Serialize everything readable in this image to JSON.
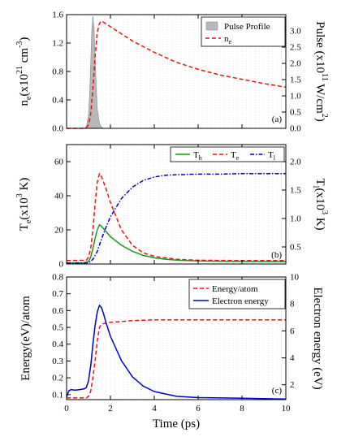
{
  "colors": {
    "pulse_fill": "#b8b8b8",
    "red": "#ee1111",
    "green": "#1a9a1a",
    "blue": "#0000cc",
    "grid": "#dcdcdc"
  },
  "chart_data": [
    {
      "type": "line",
      "panel_label": "(a)",
      "x_range": [
        0,
        10
      ],
      "x_ticks": [
        0,
        2,
        4,
        6,
        8,
        10
      ],
      "ylabel_left": {
        "main": "n",
        "sub": "e",
        "rest": "(x10",
        "sup": "21",
        "tail": " cm",
        "sup2": "-3",
        "close": ")"
      },
      "ylabel_right": {
        "main": "Pulse (x10",
        "sup": "11",
        "rest": " W/cm",
        "sup2": "2",
        "close": ")"
      },
      "ylim_left": [
        0,
        1.6
      ],
      "yticks_left": [
        "0.0",
        "0.4",
        "0.8",
        "1.2",
        "1.6"
      ],
      "ylim_right": [
        0,
        3.5
      ],
      "yticks_right": [
        "0.0",
        "0.5",
        "1.0",
        "1.5",
        "2.0",
        "2.5",
        "3.0"
      ],
      "legend_position": "top-right",
      "series": [
        {
          "name": "Pulse Profile",
          "axis": "right",
          "style": "filled",
          "x": [
            0.8,
            0.9,
            1.0,
            1.05,
            1.1,
            1.15,
            1.2,
            1.25,
            1.3,
            1.35,
            1.4,
            1.5,
            1.6,
            1.7
          ],
          "y": [
            0.0,
            0.05,
            0.4,
            1.0,
            2.0,
            3.0,
            3.45,
            3.1,
            2.2,
            1.3,
            0.6,
            0.15,
            0.03,
            0.0
          ]
        },
        {
          "name": "n",
          "name_sub": "e",
          "axis": "left",
          "style": "dashed",
          "x": [
            0,
            0.7,
            0.9,
            1.0,
            1.1,
            1.2,
            1.3,
            1.4,
            1.5,
            1.6,
            2,
            3,
            4,
            5,
            6,
            7,
            8,
            9,
            10
          ],
          "y": [
            0.0,
            0.0,
            0.01,
            0.05,
            0.2,
            0.55,
            1.0,
            1.35,
            1.48,
            1.51,
            1.43,
            1.23,
            1.07,
            0.93,
            0.83,
            0.75,
            0.69,
            0.63,
            0.58
          ]
        }
      ]
    },
    {
      "type": "line",
      "panel_label": "(b)",
      "x_range": [
        0,
        10
      ],
      "x_ticks": [
        0,
        2,
        4,
        6,
        8,
        10
      ],
      "ylabel_left": {
        "main": "T",
        "sub": "e",
        "rest": "(x10",
        "sup": "3",
        "close": " K)"
      },
      "ylabel_right": {
        "main": "T",
        "sub": "l",
        "rest": "(x10",
        "sup": "3",
        "close": " K)"
      },
      "ylim_left": [
        0,
        70
      ],
      "yticks_left": [
        "0",
        "20",
        "40",
        "60"
      ],
      "ylim_right": [
        0.2,
        2.3
      ],
      "yticks_right": [
        "0.5",
        "1.0",
        "1.5",
        "2.0"
      ],
      "legend_position": "top-right",
      "series": [
        {
          "name": "T",
          "name_sub": "h",
          "axis": "left",
          "style": "solid",
          "x": [
            0,
            0.8,
            1.0,
            1.1,
            1.2,
            1.3,
            1.4,
            1.5,
            1.6,
            1.8,
            2,
            2.5,
            3,
            3.5,
            4,
            4.5,
            5,
            6,
            7,
            8,
            10
          ],
          "y": [
            0.5,
            0.6,
            1.5,
            4,
            9,
            15,
            20,
            23,
            22,
            19,
            16,
            11,
            7.5,
            5,
            3.6,
            2.8,
            2.3,
            1.8,
            1.6,
            1.5,
            1.4
          ]
        },
        {
          "name": "T",
          "name_sub": "e",
          "axis": "left",
          "style": "dashed",
          "x": [
            0,
            0.9,
            1.0,
            1.1,
            1.2,
            1.3,
            1.4,
            1.5,
            1.6,
            1.8,
            2,
            2.5,
            3,
            3.5,
            4,
            5,
            6,
            8,
            10
          ],
          "y": [
            2,
            2.2,
            4,
            9,
            20,
            35,
            48,
            53,
            51,
            44,
            36,
            20,
            11,
            6.5,
            4.5,
            2.8,
            2.2,
            2.0,
            2.0
          ]
        },
        {
          "name": "T",
          "name_sub": "l",
          "axis": "right",
          "style": "dashdot",
          "x": [
            0,
            1.0,
            1.2,
            1.4,
            1.6,
            1.8,
            2,
            2.5,
            3,
            3.5,
            4,
            4.5,
            5,
            6,
            7,
            8,
            9,
            10
          ],
          "y": [
            0.22,
            0.22,
            0.28,
            0.42,
            0.65,
            0.85,
            1.03,
            1.35,
            1.55,
            1.67,
            1.73,
            1.76,
            1.77,
            1.78,
            1.78,
            1.79,
            1.79,
            1.79
          ]
        }
      ]
    },
    {
      "type": "line",
      "panel_label": "(c)",
      "xlabel": "Time (ps)",
      "x_range": [
        0,
        10
      ],
      "x_ticks": [
        0,
        2,
        4,
        6,
        8,
        10
      ],
      "xtick_labels": [
        "0",
        "2",
        "4",
        "6",
        "8",
        "10"
      ],
      "ylabel_left": {
        "main": "Energy(eV)/atom"
      },
      "ylabel_right": {
        "main": "Electron energy (eV)"
      },
      "ylim_left": [
        0.07,
        0.8
      ],
      "yticks_left": [
        "0.1",
        "0.2",
        "0.3",
        "0.4",
        "0.5",
        "0.6",
        "0.7",
        "0.8"
      ],
      "ylim_right": [
        0.9,
        10
      ],
      "yticks_right": [
        "2",
        "4",
        "6",
        "8",
        "10"
      ],
      "legend_position": "top-right",
      "series": [
        {
          "name": "Energy/atom",
          "axis": "left",
          "style": "dashed",
          "x": [
            0,
            0.9,
            1.0,
            1.1,
            1.2,
            1.3,
            1.4,
            1.5,
            1.6,
            1.8,
            2,
            2.5,
            3,
            4,
            5,
            6,
            8,
            10
          ],
          "y": [
            0.08,
            0.08,
            0.09,
            0.12,
            0.2,
            0.3,
            0.42,
            0.5,
            0.52,
            0.525,
            0.53,
            0.535,
            0.54,
            0.545,
            0.545,
            0.545,
            0.545,
            0.545
          ]
        },
        {
          "name": "Electron energy",
          "axis": "right",
          "style": "solid",
          "x": [
            0,
            0.1,
            0.2,
            0.4,
            0.6,
            0.8,
            0.9,
            1.0,
            1.1,
            1.2,
            1.3,
            1.4,
            1.5,
            1.6,
            1.7,
            1.8,
            2,
            2.5,
            3,
            3.5,
            4,
            5,
            6,
            8,
            10
          ],
          "y": [
            1.1,
            1.55,
            1.65,
            1.6,
            1.65,
            1.7,
            1.8,
            2.3,
            3.4,
            5.0,
            6.4,
            7.4,
            7.9,
            7.7,
            7.2,
            6.6,
            5.6,
            3.8,
            2.6,
            1.9,
            1.5,
            1.15,
            1.05,
            1.0,
            0.95
          ]
        }
      ]
    }
  ]
}
